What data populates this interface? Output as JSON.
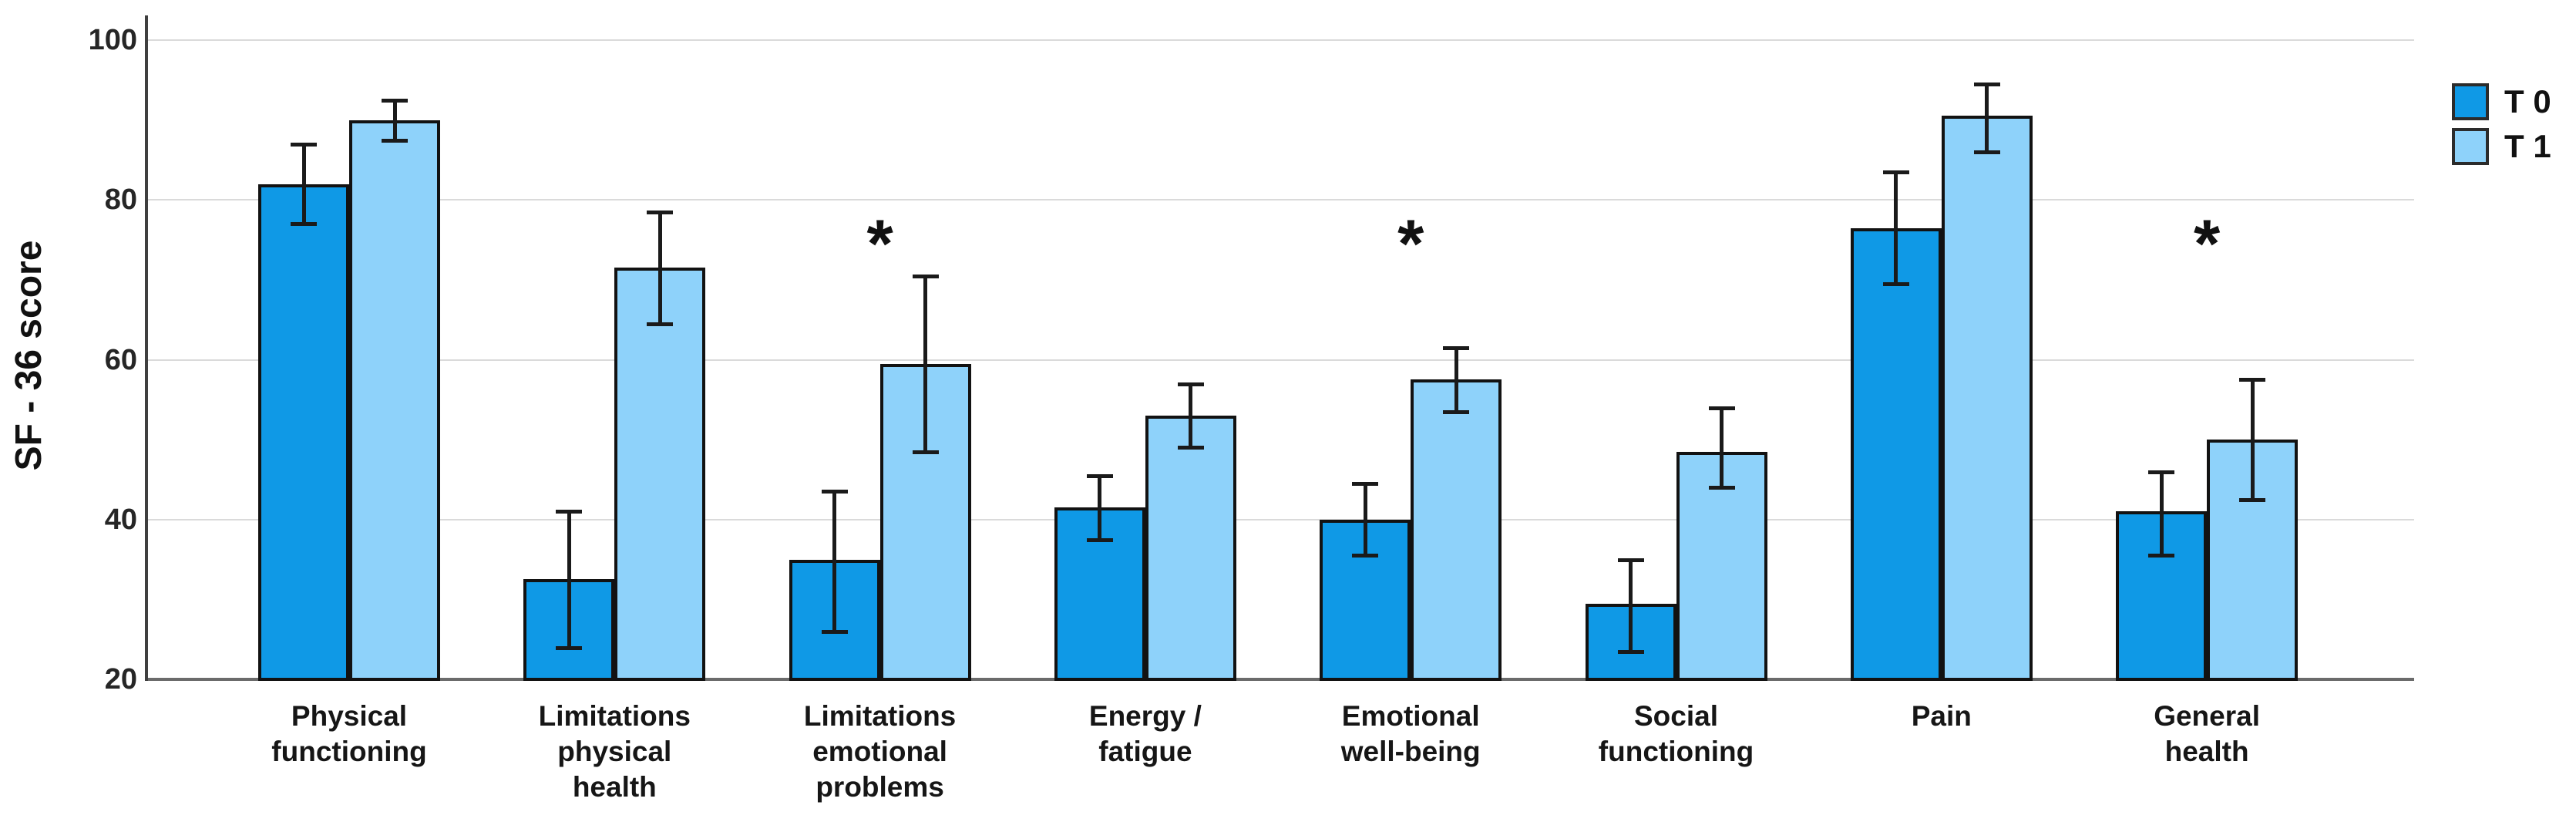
{
  "figure": {
    "background": "#ffffff",
    "axis_color": "#3f3f3f",
    "grid_color": "#dadada",
    "bar_border_color": "#121212",
    "error_bar_color": "#1a1a1a"
  },
  "chart_data": {
    "type": "bar",
    "title": "",
    "xlabel": "",
    "ylabel": "SF - 36 score",
    "ylim": [
      20,
      100
    ],
    "yticks": [
      20,
      40,
      60,
      80,
      100
    ],
    "grid": true,
    "legend_position": "top-right",
    "categories": [
      "Physical functioning",
      "Limitations physical health",
      "Limitations emotional problems",
      "Energy / fatigue",
      "Emotional well-being",
      "Social functioning",
      "Pain",
      "General health"
    ],
    "category_label_lines": [
      [
        "Physical",
        "functioning"
      ],
      [
        "Limitations",
        "physical",
        "health"
      ],
      [
        "Limitations",
        "emotional",
        "problems"
      ],
      [
        "Energy /",
        "fatigue"
      ],
      [
        "Emotional",
        "well-being"
      ],
      [
        "Social",
        "functioning"
      ],
      [
        "Pain"
      ],
      [
        "General",
        "health"
      ]
    ],
    "series": [
      {
        "name": "T 0",
        "color": "#0f99e6",
        "values": [
          82,
          32.5,
          35,
          41.5,
          40,
          29.5,
          76.5,
          41
        ],
        "error_bar_low": [
          77,
          24,
          26,
          37.5,
          35.5,
          23.5,
          69.5,
          35.5
        ],
        "error_bar_high": [
          87,
          41,
          43.5,
          45.5,
          44.5,
          35,
          83.5,
          46
        ]
      },
      {
        "name": "T 1",
        "color": "#8ed2fa",
        "values": [
          90,
          71.5,
          59.5,
          53,
          57.5,
          48.5,
          90.5,
          50
        ],
        "error_bar_low": [
          87.5,
          64.5,
          48.5,
          49,
          53.5,
          44,
          86,
          42.5
        ],
        "error_bar_high": [
          92.5,
          78.5,
          70.5,
          57,
          61.5,
          54,
          94.5,
          57.5
        ]
      }
    ],
    "significance_marker": "*",
    "significant_flags": [
      false,
      false,
      true,
      false,
      true,
      false,
      false,
      true
    ],
    "significant_categories": [
      "Limitations emotional problems",
      "Emotional well-being",
      "General health"
    ]
  }
}
